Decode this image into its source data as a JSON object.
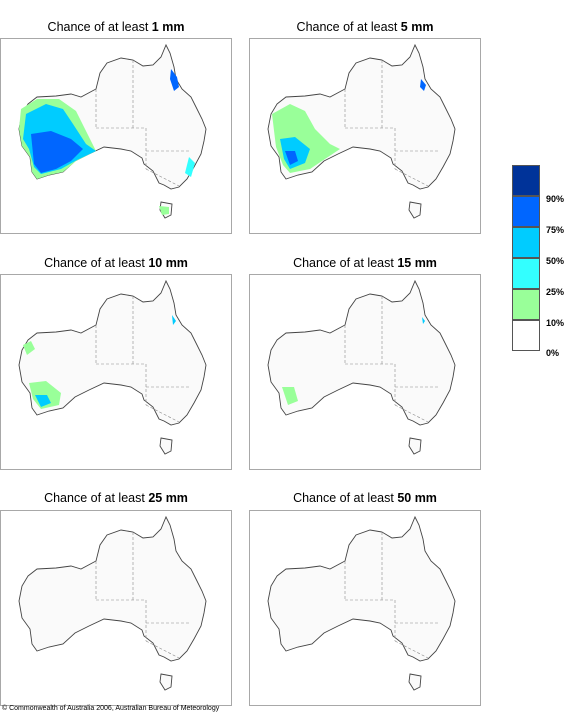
{
  "panels": [
    {
      "prefix": "Chance of at least",
      "amount": "1 mm"
    },
    {
      "prefix": "Chance of at least",
      "amount": "5 mm"
    },
    {
      "prefix": "Chance of at least",
      "amount": "10 mm"
    },
    {
      "prefix": "Chance of at least",
      "amount": "15 mm"
    },
    {
      "prefix": "Chance of at least",
      "amount": "25 mm"
    },
    {
      "prefix": "Chance of at least",
      "amount": "50 mm"
    }
  ],
  "legend": {
    "labels": [
      "90%",
      "75%",
      "50%",
      "25%",
      "10%",
      "0%"
    ],
    "colors": [
      "#003399",
      "#0066ff",
      "#00ccff",
      "#33ffff",
      "#99ff99",
      "#ffffff"
    ]
  },
  "copyright": "© Commonwealth of Australia 2006, Australian Bureau of Meteorology"
}
